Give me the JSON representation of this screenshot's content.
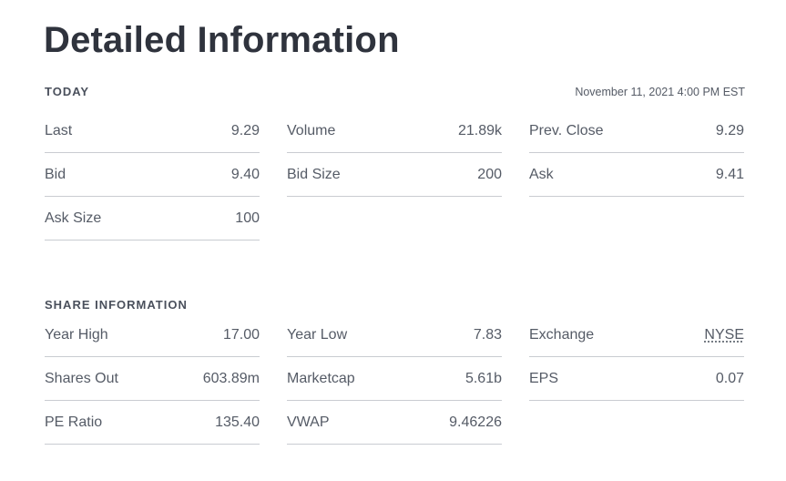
{
  "title": "Detailed Information",
  "today": {
    "label": "TODAY",
    "timestamp": "November 11, 2021 4:00 PM EST",
    "rows": [
      {
        "label": "Last",
        "value": "9.29"
      },
      {
        "label": "Volume",
        "value": "21.89k"
      },
      {
        "label": "Prev. Close",
        "value": "9.29"
      },
      {
        "label": "Bid",
        "value": "9.40"
      },
      {
        "label": "Bid Size",
        "value": "200"
      },
      {
        "label": "Ask",
        "value": "9.41"
      },
      {
        "label": "Ask Size",
        "value": "100"
      }
    ]
  },
  "share": {
    "label": "SHARE INFORMATION",
    "rows": [
      {
        "label": "Year High",
        "value": "17.00"
      },
      {
        "label": "Year Low",
        "value": "7.83"
      },
      {
        "label": "Exchange",
        "value": "NYSE"
      },
      {
        "label": "Shares Out",
        "value": "603.89m"
      },
      {
        "label": "Marketcap",
        "value": "5.61b"
      },
      {
        "label": "EPS",
        "value": "0.07"
      },
      {
        "label": "PE Ratio",
        "value": "135.40"
      },
      {
        "label": "VWAP",
        "value": "9.46226"
      }
    ]
  }
}
